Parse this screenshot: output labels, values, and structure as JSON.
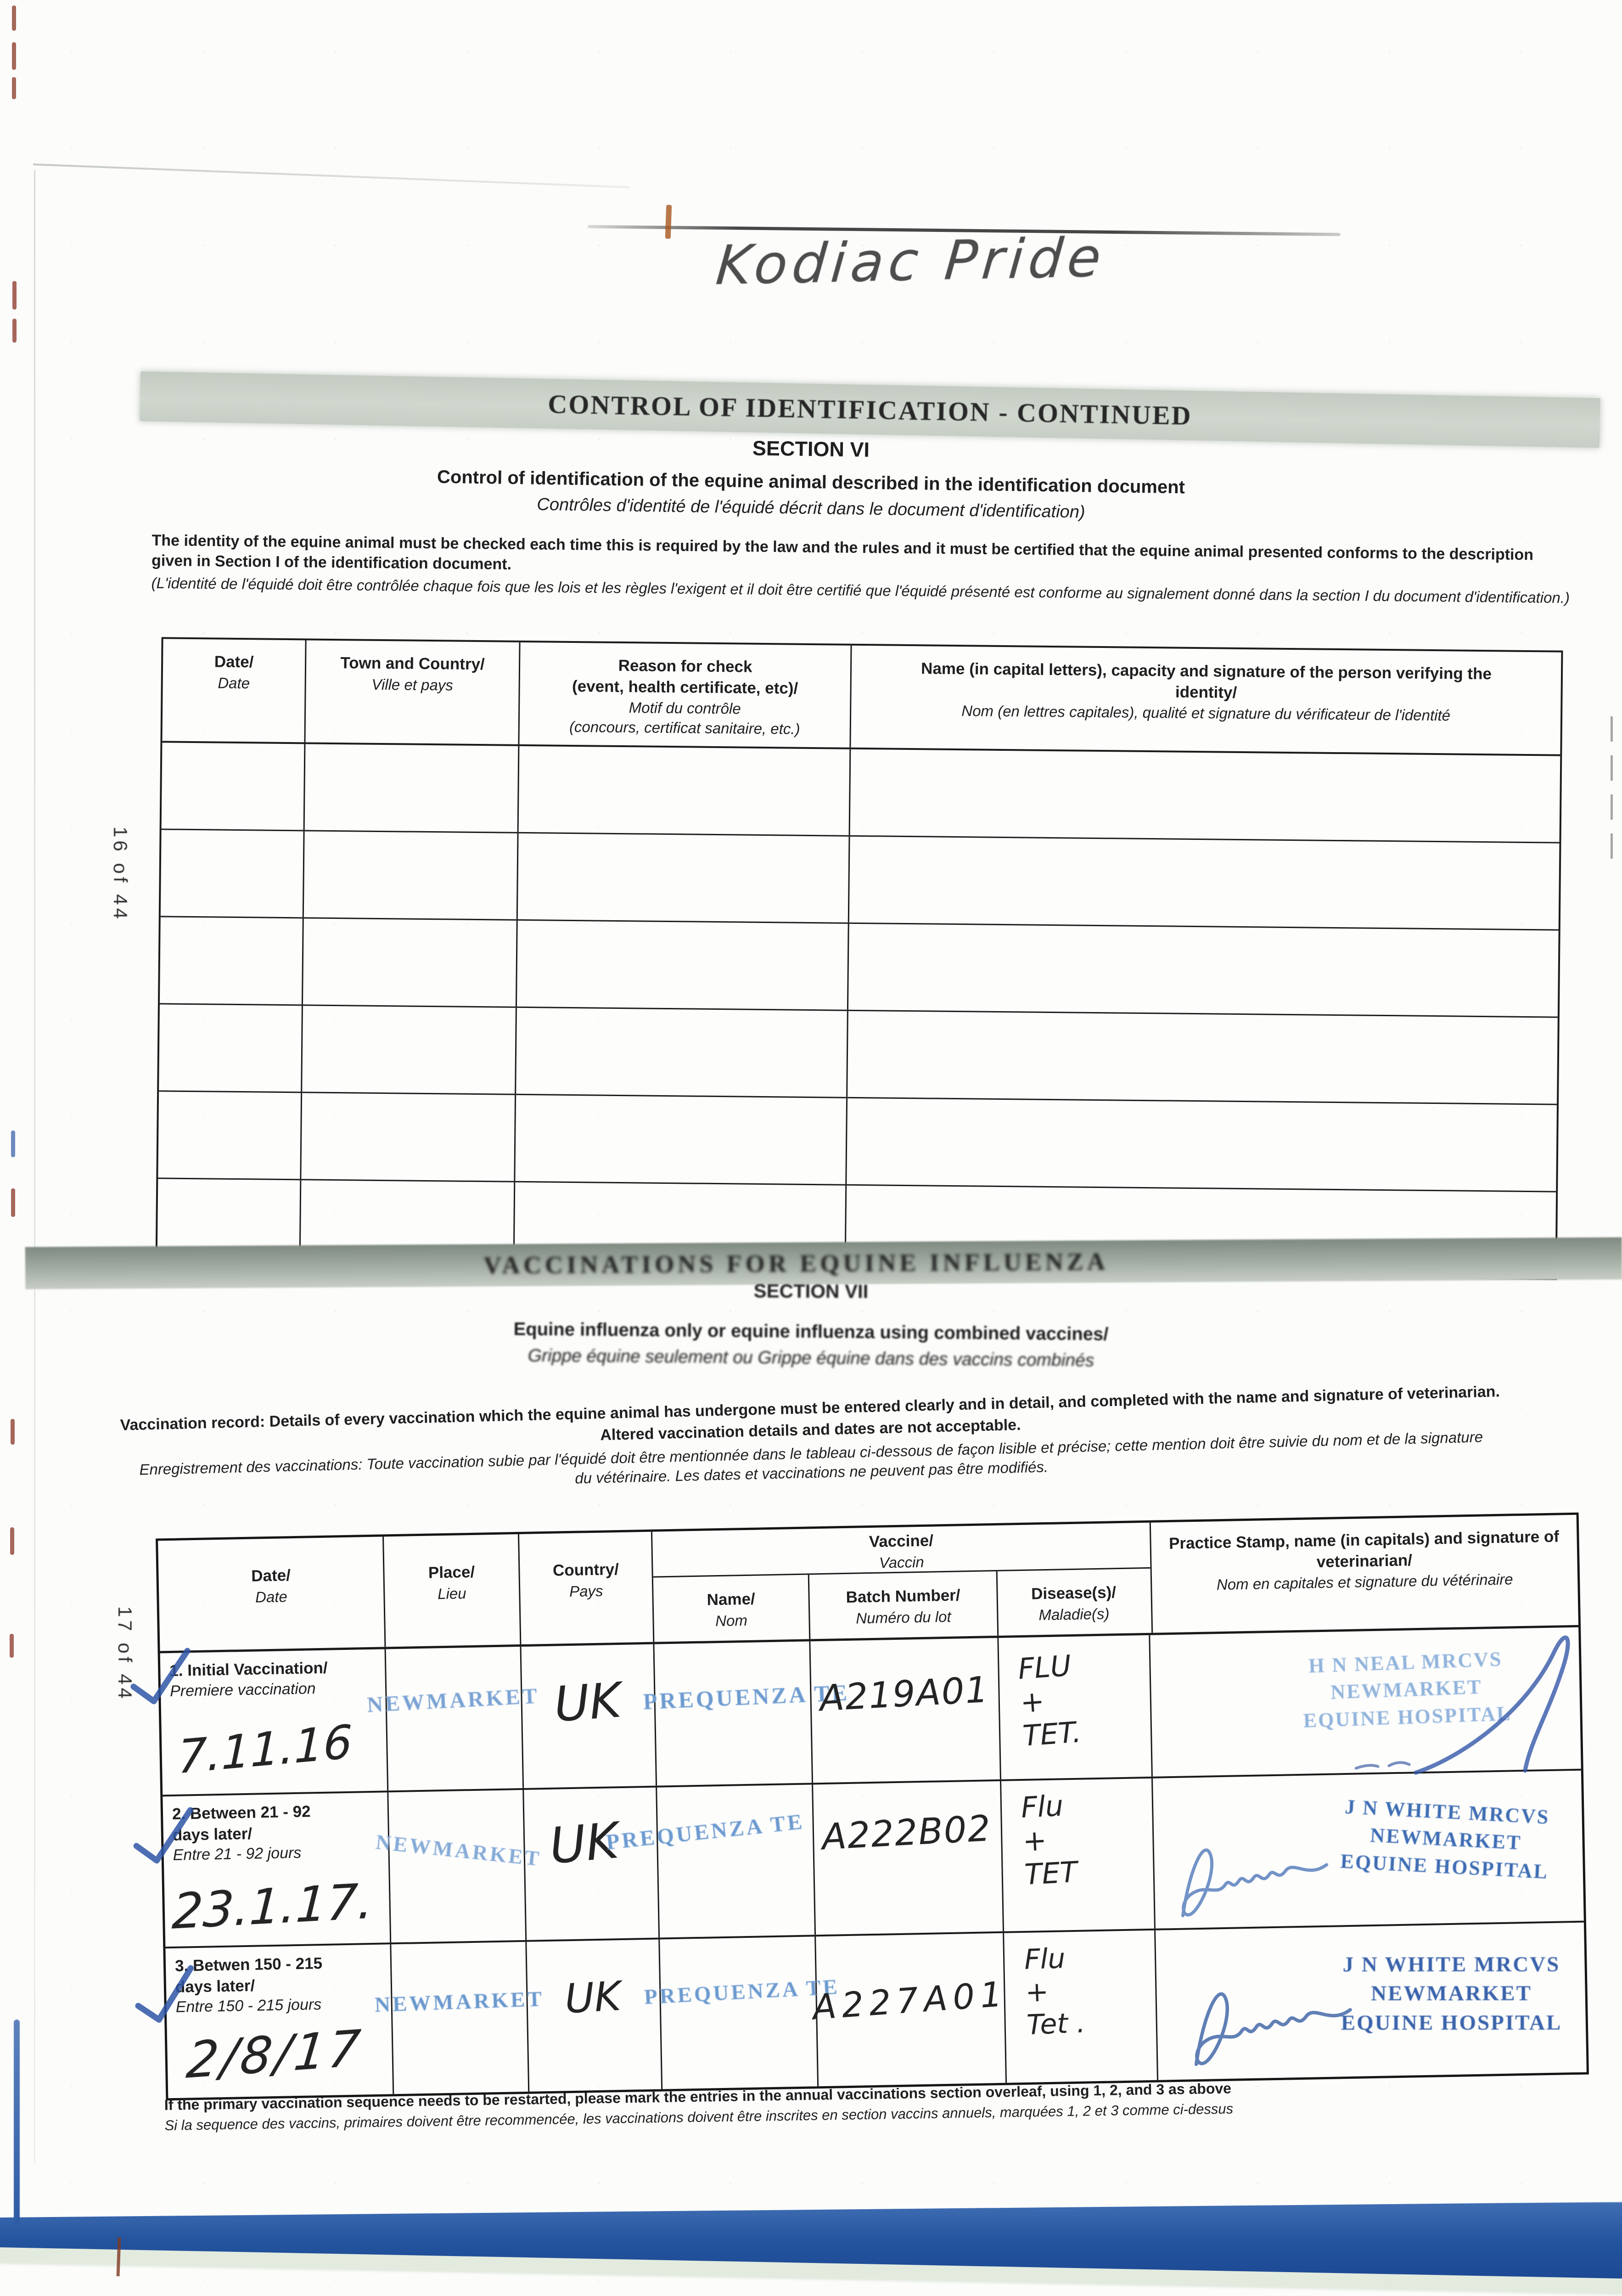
{
  "page": {
    "handwritten_horse_name": "Kodiac Pride",
    "side_labels": {
      "section6": "16 of 44",
      "section7": "17 of 44"
    }
  },
  "colors": {
    "stamp_blue": "#6d9bd0",
    "stamp_blue_light": "#91b4dc",
    "stamp_blue_dark": "#3e6db4",
    "signature_blue": "#3357a8",
    "band_gray": "#c9d0c8",
    "band_dark_gray": "#8d978e",
    "booklet_edge_blue": "#24549e",
    "ink": "#1f1f1f"
  },
  "section6": {
    "band_title": "CONTROL OF IDENTIFICATION - CONTINUED",
    "section_label": "SECTION VI",
    "title_en": "Control of identification of the equine animal described in the identification document",
    "title_fr": "Contrôles d'identité de l'équidé décrit dans le document d'identification)",
    "intro_en": "The identity of the equine animal must be checked each time this is required by the law and the rules and it must be certified that the equine animal presented conforms to the description given in Section I of the identification document.",
    "intro_fr": "(L'identité de l'équidé doit être contrôlée chaque fois que les lois et les règles l'exigent et il doit être certifié que l'équidé présenté est conforme au signalement donné dans la section I du document d'identification.)",
    "table": {
      "headers": [
        {
          "en": "Date/",
          "fr": "Date"
        },
        {
          "en": "Town and Country/",
          "fr": "Ville et pays"
        },
        {
          "en": [
            "Reason for check",
            "(event, health certificate, etc)/"
          ],
          "fr": [
            "Motif du contrôle",
            "(concours, certificat sanitaire, etc.)"
          ]
        },
        {
          "en": "Name (in capital letters), capacity and signature of the person verifying the identity/",
          "fr": "Nom (en lettres capitales), qualité et signature du vérificateur de l'identité"
        }
      ],
      "empty_row_count": 6
    }
  },
  "section7": {
    "band_title": "VACCINATIONS FOR EQUINE INFLUENZA",
    "section_label": "SECTION VII",
    "subtitle_en": "Equine influenza only or equine influenza using combined vaccines/",
    "subtitle_fr": "Grippe équine seulement ou Grippe équine dans des vaccins combinés",
    "note_en_1": "Vaccination record: Details of every vaccination which the equine animal has undergone must be entered clearly and in detail, and completed with the name and signature of veterinarian.",
    "note_en_2": "Altered vaccination details and dates are not acceptable.",
    "note_fr_1": "Enregistrement des vaccinations: Toute vaccination subie par l'équidé doit être mentionnée dans le tableau ci-dessous de façon lisible et précise; cette mention doit être suivie du nom et de la signature",
    "note_fr_2": "du vétérinaire. Les dates et vaccinations ne peuvent pas être modifiés.",
    "table": {
      "headers": {
        "date": {
          "en": "Date/",
          "fr": "Date"
        },
        "place": {
          "en": "Place/",
          "fr": "Lieu"
        },
        "country": {
          "en": "Country/",
          "fr": "Pays"
        },
        "vaccine": {
          "en": "Vaccine/",
          "fr": "Vaccin"
        },
        "name": {
          "en": "Name/",
          "fr": "Nom"
        },
        "batch": {
          "en": "Batch Number/",
          "fr": "Numéro du lot"
        },
        "disease": {
          "en": "Disease(s)/",
          "fr": "Maladie(s)"
        },
        "stamp": {
          "en": "Practice Stamp, name (in capitals) and signature of veterinarian/",
          "fr": "Nom en capitales et signature du vétérinaire"
        }
      },
      "rows": [
        {
          "label_en": [
            "1. Initial Vaccination/"
          ],
          "label_fr": "Premiere vaccination",
          "date": "7.11.16",
          "place_stamp": "NEWMARKET",
          "country": "UK",
          "vaccine_stamp": "PREQUENZA TE",
          "batch": "A219A01",
          "disease": [
            "FLU",
            "+",
            "TET."
          ],
          "stamp": [
            "H N NEAL MRCVS",
            "NEWMARKET",
            "EQUINE HOSPITAL"
          ]
        },
        {
          "label_en": [
            "2. Between 21 - 92",
            "days later/"
          ],
          "label_fr": "Entre 21 - 92 jours",
          "date": "23.1.17.",
          "place_stamp": "NEWMARKET",
          "country": "UK",
          "vaccine_stamp": "PREQUENZA TE",
          "batch": "A222B02",
          "disease": [
            "Flu",
            "+",
            "TET"
          ],
          "stamp": [
            "J N WHITE MRCVS",
            "NEWMARKET",
            "EQUINE HOSPITAL"
          ]
        },
        {
          "label_en": [
            "3. Betwen 150 - 215",
            "days later/"
          ],
          "label_fr": "Entre 150 - 215 jours",
          "date": "2/8/17",
          "place_stamp": "NEWMARKET",
          "country": "UK",
          "vaccine_stamp": "PREQUENZA TE",
          "batch": "A227A01",
          "disease": [
            "Flu",
            "+",
            "Tet ."
          ],
          "stamp": [
            "J N WHITE MRCVS",
            "NEWMARKET",
            "EQUINE HOSPITAL"
          ]
        }
      ]
    },
    "footer_en": "If the primary vaccination sequence needs to be restarted, please mark the entries in the annual vaccinations section overleaf, using 1, 2, and 3 as above",
    "footer_fr": "Si la sequence des vaccins, primaires doivent être recommencée, les vaccinations doivent être inscrites en section vaccins annuels, marquées 1, 2 et 3 comme ci-dessus"
  }
}
